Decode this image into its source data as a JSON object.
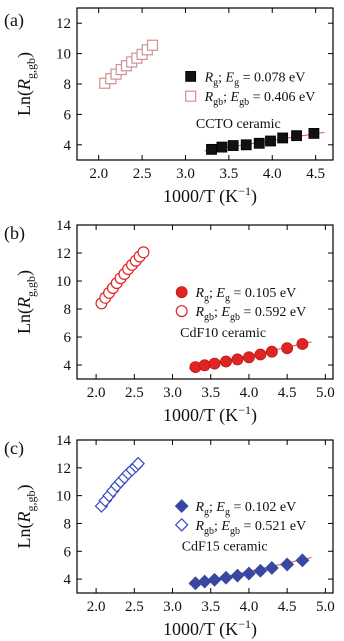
{
  "figure": {
    "xlabel": "1000/T (K",
    "xlabel_sup": "−1",
    "xlabel_close": ")",
    "ylabel_main": "Ln(",
    "ylabel_R": "R",
    "ylabel_sub": "g,gb",
    "ylabel_close": ")"
  },
  "chart_data": [
    {
      "panel_label": "(a)",
      "type": "scatter",
      "sample_label": "CCTO ceramic",
      "xlim": [
        1.75,
        4.7
      ],
      "ylim": [
        3.0,
        13.0
      ],
      "xticks": [
        2.0,
        2.5,
        3.0,
        3.5,
        4.0,
        4.5
      ],
      "yticks": [
        4,
        6,
        8,
        10,
        12
      ],
      "grid": false,
      "legend_position": "center-right",
      "series": [
        {
          "name": "Rg; Eg = 0.078 eV",
          "name_parts": [
            "R",
            "g",
            "; ",
            "E",
            "g",
            " = 0.078 eV"
          ],
          "marker": "filled-square",
          "color": "#000000",
          "x": [
            3.3,
            3.42,
            3.55,
            3.7,
            3.85,
            3.98,
            4.12,
            4.28,
            4.48
          ],
          "y": [
            3.7,
            3.85,
            3.95,
            4.0,
            4.1,
            4.25,
            4.45,
            4.6,
            4.75
          ],
          "fit": [
            [
              3.22,
              3.6
            ],
            [
              4.6,
              4.82
            ]
          ],
          "fit_color": "#e05050"
        },
        {
          "name": "Rgb; Egb = 0.406 eV",
          "name_parts": [
            "R",
            "gb",
            "; ",
            "E",
            "gb",
            " = 0.406 eV"
          ],
          "marker": "open-square",
          "color": "#d09090",
          "x": [
            2.07,
            2.14,
            2.2,
            2.26,
            2.32,
            2.38,
            2.44,
            2.5,
            2.56,
            2.62
          ],
          "y": [
            8.05,
            8.35,
            8.65,
            8.95,
            9.2,
            9.45,
            9.7,
            9.95,
            10.25,
            10.55
          ],
          "fit": [
            [
              2.04,
              7.95
            ],
            [
              2.64,
              10.65
            ]
          ],
          "fit_color": "#e05050"
        }
      ]
    },
    {
      "panel_label": "(b)",
      "type": "scatter",
      "sample_label": "CdF10 ceramic",
      "xlim": [
        1.75,
        5.1
      ],
      "ylim": [
        3.0,
        14.0
      ],
      "xticks": [
        2.0,
        2.5,
        3.0,
        3.5,
        4.0,
        4.5,
        5.0
      ],
      "yticks": [
        4,
        6,
        8,
        10,
        12,
        14
      ],
      "grid": false,
      "legend_position": "center-right",
      "series": [
        {
          "name": "Rg; Eg = 0.105 eV",
          "name_parts": [
            "R",
            "g",
            "; ",
            "E",
            "g",
            " = 0.105 eV"
          ],
          "marker": "filled-circle",
          "color": "#e02424",
          "x": [
            3.3,
            3.42,
            3.55,
            3.7,
            3.85,
            4.0,
            4.15,
            4.3,
            4.5,
            4.7
          ],
          "y": [
            3.85,
            3.98,
            4.1,
            4.25,
            4.4,
            4.55,
            4.75,
            4.95,
            5.2,
            5.5
          ],
          "fit": [
            [
              3.22,
              3.75
            ],
            [
              4.82,
              5.65
            ]
          ],
          "fit_color": "#e05050"
        },
        {
          "name": "Rgb; Egb = 0.592 eV",
          "name_parts": [
            "R",
            "gb",
            "; ",
            "E",
            "gb",
            " = 0.592 eV"
          ],
          "marker": "open-circle",
          "color": "#e02424",
          "x": [
            2.07,
            2.12,
            2.17,
            2.22,
            2.27,
            2.32,
            2.37,
            2.42,
            2.47,
            2.52,
            2.57,
            2.62
          ],
          "y": [
            8.4,
            8.8,
            9.15,
            9.5,
            9.85,
            10.2,
            10.5,
            10.85,
            11.15,
            11.45,
            11.75,
            12.05
          ],
          "fit": [
            [
              2.04,
              8.2
            ],
            [
              2.66,
              12.3
            ]
          ],
          "fit_color": "#e05050"
        }
      ]
    },
    {
      "panel_label": "(c)",
      "type": "scatter",
      "sample_label": "CdF15 ceramic",
      "xlim": [
        1.75,
        5.1
      ],
      "ylim": [
        3.0,
        14.0
      ],
      "xticks": [
        2.0,
        2.5,
        3.0,
        3.5,
        4.0,
        4.5,
        5.0
      ],
      "yticks": [
        4,
        6,
        8,
        10,
        12,
        14
      ],
      "grid": false,
      "legend_position": "center-right",
      "series": [
        {
          "name": "Rg; Eg = 0.102 eV",
          "name_parts": [
            "R",
            "g",
            "; ",
            "E",
            "g",
            " = 0.102 eV"
          ],
          "marker": "filled-diamond",
          "color": "#3848a0",
          "x": [
            3.3,
            3.42,
            3.55,
            3.7,
            3.85,
            4.0,
            4.15,
            4.3,
            4.5,
            4.7
          ],
          "y": [
            3.7,
            3.82,
            3.95,
            4.1,
            4.25,
            4.4,
            4.6,
            4.8,
            5.05,
            5.35
          ],
          "fit": [
            [
              3.22,
              3.6
            ],
            [
              4.82,
              5.55
            ]
          ],
          "fit_color": "#e05050"
        },
        {
          "name": "Rgb; Egb = 0.521 eV",
          "name_parts": [
            "R",
            "gb",
            "; ",
            "E",
            "gb",
            " = 0.521 eV"
          ],
          "marker": "open-diamond",
          "color": "#3848c0",
          "x": [
            2.07,
            2.12,
            2.17,
            2.22,
            2.27,
            2.32,
            2.37,
            2.42,
            2.47,
            2.52,
            2.55
          ],
          "y": [
            9.25,
            9.65,
            10.0,
            10.35,
            10.7,
            11.0,
            11.3,
            11.6,
            11.85,
            12.1,
            12.3
          ],
          "fit": [
            [
              2.04,
              9.05
            ],
            [
              2.58,
              12.45
            ]
          ],
          "fit_color": "#e05050"
        }
      ]
    }
  ]
}
